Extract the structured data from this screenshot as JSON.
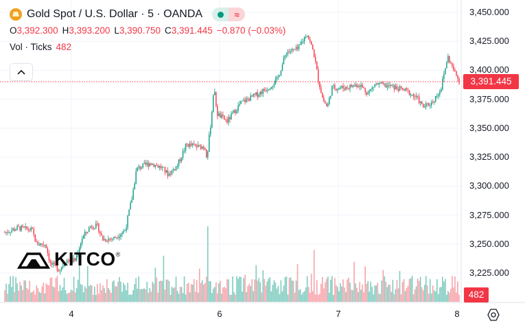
{
  "header": {
    "symbol": "Gold Spot / U.S. Dollar · 5 · OANDA",
    "ohlc": {
      "o_label": "O",
      "o": "3,392.300",
      "h_label": "H",
      "h": "3,393.200",
      "l_label": "L",
      "l": "3,390.750",
      "c_label": "C",
      "c": "3,391.445",
      "change": "−0.870 (−0.03%)"
    },
    "vol_label": "Vol · Ticks",
    "vol_value": "482",
    "collapse_icon": "chevron-up-icon",
    "pill_icons": [
      "dot-icon",
      "approx-icon"
    ]
  },
  "price_tag": "3,391.445",
  "volume_tag": "482",
  "logo": {
    "text": "KITCO",
    "mark": "®"
  },
  "colors": {
    "up": "#089981",
    "down": "#f23645",
    "up_volume": "#7fcbbf",
    "down_volume": "#f7a3a9",
    "grid": "#f0f3fa",
    "gold": "#f0a020"
  },
  "chart_data": {
    "type": "candlestick",
    "series_name": "Gold Spot / U.S. Dollar · 5 · OANDA",
    "last_price": 3391.445,
    "y_ticks": [
      "3,225.000",
      "3,250.000",
      "3,275.000",
      "3,300.000",
      "3,325.000",
      "3,350.000",
      "3,375.000",
      "3,400.000",
      "3,425.000",
      "3,450.000"
    ],
    "y_tick_values": [
      3225,
      3250,
      3275,
      3300,
      3325,
      3350,
      3375,
      3400,
      3425,
      3450
    ],
    "ylim": [
      3210,
      3460
    ],
    "x_ticks": [
      "4",
      "6",
      "7",
      "8"
    ],
    "grid": true,
    "price_path": [
      {
        "x": 0.0,
        "y": 3260
      },
      {
        "x": 0.03,
        "y": 3264
      },
      {
        "x": 0.06,
        "y": 3262
      },
      {
        "x": 0.07,
        "y": 3250
      },
      {
        "x": 0.09,
        "y": 3250
      },
      {
        "x": 0.1,
        "y": 3233
      },
      {
        "x": 0.12,
        "y": 3228
      },
      {
        "x": 0.135,
        "y": 3236
      },
      {
        "x": 0.155,
        "y": 3236
      },
      {
        "x": 0.17,
        "y": 3255
      },
      {
        "x": 0.19,
        "y": 3266
      },
      {
        "x": 0.205,
        "y": 3265
      },
      {
        "x": 0.215,
        "y": 3254
      },
      {
        "x": 0.24,
        "y": 3255
      },
      {
        "x": 0.265,
        "y": 3262
      },
      {
        "x": 0.28,
        "y": 3290
      },
      {
        "x": 0.29,
        "y": 3315
      },
      {
        "x": 0.32,
        "y": 3320
      },
      {
        "x": 0.345,
        "y": 3316
      },
      {
        "x": 0.36,
        "y": 3310
      },
      {
        "x": 0.38,
        "y": 3318
      },
      {
        "x": 0.4,
        "y": 3336
      },
      {
        "x": 0.425,
        "y": 3334
      },
      {
        "x": 0.44,
        "y": 3334
      },
      {
        "x": 0.445,
        "y": 3325
      },
      {
        "x": 0.455,
        "y": 3360
      },
      {
        "x": 0.46,
        "y": 3385
      },
      {
        "x": 0.468,
        "y": 3362
      },
      {
        "x": 0.49,
        "y": 3356
      },
      {
        "x": 0.52,
        "y": 3372
      },
      {
        "x": 0.55,
        "y": 3378
      },
      {
        "x": 0.58,
        "y": 3385
      },
      {
        "x": 0.6,
        "y": 3392
      },
      {
        "x": 0.62,
        "y": 3416
      },
      {
        "x": 0.645,
        "y": 3418
      },
      {
        "x": 0.665,
        "y": 3432
      },
      {
        "x": 0.68,
        "y": 3415
      },
      {
        "x": 0.69,
        "y": 3392
      },
      {
        "x": 0.7,
        "y": 3375
      },
      {
        "x": 0.71,
        "y": 3368
      },
      {
        "x": 0.72,
        "y": 3385
      },
      {
        "x": 0.75,
        "y": 3385
      },
      {
        "x": 0.78,
        "y": 3388
      },
      {
        "x": 0.8,
        "y": 3380
      },
      {
        "x": 0.815,
        "y": 3388
      },
      {
        "x": 0.85,
        "y": 3386
      },
      {
        "x": 0.885,
        "y": 3382
      },
      {
        "x": 0.91,
        "y": 3375
      },
      {
        "x": 0.92,
        "y": 3368
      },
      {
        "x": 0.94,
        "y": 3372
      },
      {
        "x": 0.96,
        "y": 3384
      },
      {
        "x": 0.975,
        "y": 3412
      },
      {
        "x": 0.99,
        "y": 3398
      },
      {
        "x": 1.0,
        "y": 3391
      }
    ]
  }
}
